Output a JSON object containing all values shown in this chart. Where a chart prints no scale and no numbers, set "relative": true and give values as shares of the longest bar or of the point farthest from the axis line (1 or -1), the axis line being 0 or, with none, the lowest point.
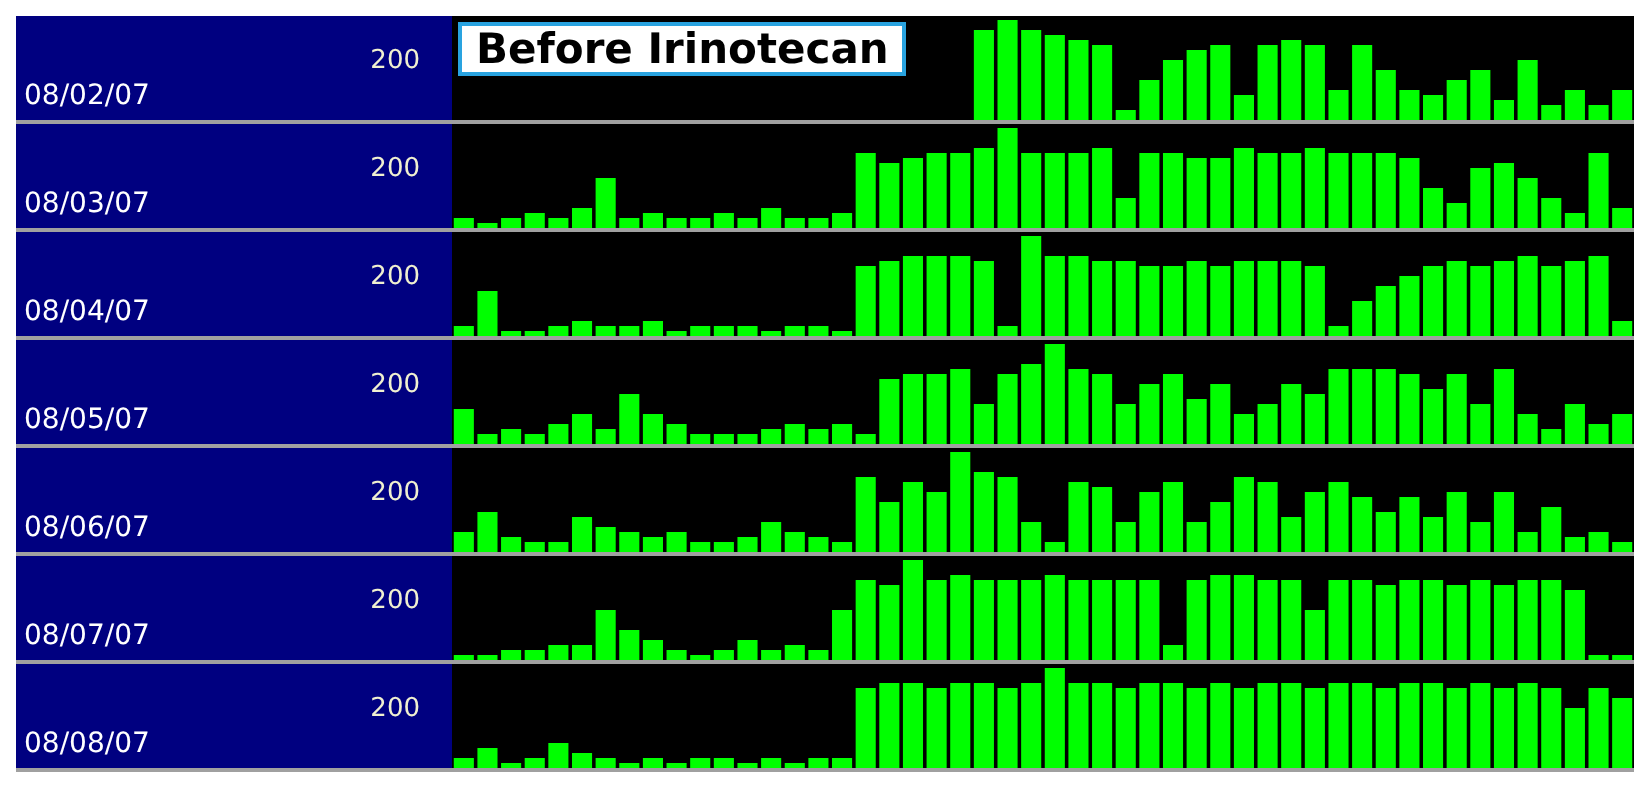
{
  "chart_data": [
    {
      "type": "bar",
      "title": "Before Irinotecan",
      "ylabel": "08/02/07",
      "annotations": [
        "200"
      ],
      "relative": true,
      "color": "#00ff00",
      "categories": [
        null,
        null,
        null,
        null,
        null,
        null,
        null,
        null,
        null,
        null,
        null,
        null,
        null,
        null,
        null,
        null,
        null,
        null,
        null,
        null,
        null,
        null,
        null,
        null,
        null,
        null,
        null,
        null
      ],
      "values": [
        0.9,
        1,
        0.9,
        0.85,
        0.8,
        0.75,
        0.1,
        0.4,
        0.6,
        0.7,
        0.75,
        0.25,
        0.75,
        0.8,
        0.75,
        0.3,
        0.75,
        0.5,
        0.3,
        0.25,
        0.4,
        0.5,
        0.2,
        0.6,
        0.15,
        0.3,
        0.15,
        0.3
      ]
    },
    {
      "type": "bar",
      "ylabel": "08/03/07",
      "annotations": [
        "200"
      ],
      "relative": true,
      "color": "#00ff00",
      "categories": [
        null,
        null,
        null,
        null,
        null,
        null,
        null,
        null,
        null,
        null,
        null,
        null,
        null,
        null,
        null,
        null,
        null,
        null,
        null,
        null,
        null,
        null,
        null,
        null,
        null,
        null,
        null,
        null,
        null,
        null,
        null,
        null,
        null,
        null,
        null,
        null,
        null,
        null,
        null,
        null,
        null,
        null,
        null,
        null,
        null,
        null,
        null,
        null,
        null,
        null
      ],
      "values": [
        0.1,
        0.05,
        0.1,
        0.15,
        0.1,
        0.2,
        0.5,
        0.1,
        0.15,
        0.1,
        0.1,
        0.15,
        0.1,
        0.2,
        0.1,
        0.1,
        0.15,
        0.75,
        0.65,
        0.7,
        0.75,
        0.75,
        0.8,
        1,
        0.75,
        0.75,
        0.75,
        0.8,
        0.3,
        0.75,
        0.75,
        0.7,
        0.7,
        0.8,
        0.75,
        0.75,
        0.8,
        0.75,
        0.75,
        0.75,
        0.7,
        0.4,
        0.25,
        0.6,
        0.65,
        0.5,
        0.3,
        0.15,
        0.75,
        0.2
      ]
    },
    {
      "type": "bar",
      "ylabel": "08/04/07",
      "annotations": [
        "200"
      ],
      "relative": true,
      "color": "#00ff00",
      "categories": [
        null,
        null,
        null,
        null,
        null,
        null,
        null,
        null,
        null,
        null,
        null,
        null,
        null,
        null,
        null,
        null,
        null,
        null,
        null,
        null,
        null,
        null,
        null,
        null,
        null,
        null,
        null,
        null,
        null,
        null,
        null,
        null,
        null,
        null,
        null,
        null,
        null,
        null,
        null,
        null,
        null,
        null,
        null,
        null,
        null,
        null,
        null,
        null,
        null,
        null
      ],
      "values": [
        0.1,
        0.45,
        0.05,
        0.05,
        0.1,
        0.15,
        0.1,
        0.1,
        0.15,
        0.05,
        0.1,
        0.1,
        0.1,
        0.05,
        0.1,
        0.1,
        0.05,
        0.7,
        0.75,
        0.8,
        0.8,
        0.8,
        0.75,
        0.1,
        1,
        0.8,
        0.8,
        0.75,
        0.75,
        0.7,
        0.7,
        0.75,
        0.7,
        0.75,
        0.75,
        0.75,
        0.7,
        0.1,
        0.35,
        0.5,
        0.6,
        0.7,
        0.75,
        0.7,
        0.75,
        0.8,
        0.7,
        0.75,
        0.8,
        0.15
      ]
    },
    {
      "type": "bar",
      "ylabel": "08/05/07",
      "annotations": [
        "200"
      ],
      "relative": true,
      "color": "#00ff00",
      "categories": [
        null,
        null,
        null,
        null,
        null,
        null,
        null,
        null,
        null,
        null,
        null,
        null,
        null,
        null,
        null,
        null,
        null,
        null,
        null,
        null,
        null,
        null,
        null,
        null,
        null,
        null,
        null,
        null,
        null,
        null,
        null,
        null,
        null,
        null,
        null,
        null,
        null,
        null,
        null,
        null,
        null,
        null,
        null,
        null,
        null,
        null,
        null,
        null,
        null,
        null
      ],
      "values": [
        0.35,
        0.1,
        0.15,
        0.1,
        0.2,
        0.3,
        0.15,
        0.5,
        0.3,
        0.2,
        0.1,
        0.1,
        0.1,
        0.15,
        0.2,
        0.15,
        0.2,
        0.1,
        0.65,
        0.7,
        0.7,
        0.75,
        0.4,
        0.7,
        0.8,
        1,
        0.75,
        0.7,
        0.4,
        0.6,
        0.7,
        0.45,
        0.6,
        0.3,
        0.4,
        0.6,
        0.5,
        0.75,
        0.75,
        0.75,
        0.7,
        0.55,
        0.7,
        0.4,
        0.75,
        0.3,
        0.15,
        0.4,
        0.2,
        0.3
      ]
    },
    {
      "type": "bar",
      "ylabel": "08/06/07",
      "annotations": [
        "200"
      ],
      "relative": true,
      "color": "#00ff00",
      "categories": [
        null,
        null,
        null,
        null,
        null,
        null,
        null,
        null,
        null,
        null,
        null,
        null,
        null,
        null,
        null,
        null,
        null,
        null,
        null,
        null,
        null,
        null,
        null,
        null,
        null,
        null,
        null,
        null,
        null,
        null,
        null,
        null,
        null,
        null,
        null,
        null,
        null,
        null,
        null,
        null,
        null,
        null,
        null,
        null,
        null,
        null,
        null,
        null,
        null,
        null
      ],
      "values": [
        0.2,
        0.4,
        0.15,
        0.1,
        0.1,
        0.35,
        0.25,
        0.2,
        0.15,
        0.2,
        0.1,
        0.1,
        0.15,
        0.3,
        0.2,
        0.15,
        0.1,
        0.75,
        0.5,
        0.7,
        0.6,
        1,
        0.8,
        0.75,
        0.3,
        0.1,
        0.7,
        0.65,
        0.3,
        0.6,
        0.7,
        0.3,
        0.5,
        0.75,
        0.7,
        0.35,
        0.6,
        0.7,
        0.55,
        0.4,
        0.55,
        0.35,
        0.6,
        0.3,
        0.6,
        0.2,
        0.45,
        0.15,
        0.2,
        0.1
      ]
    },
    {
      "type": "bar",
      "ylabel": "08/07/07",
      "annotations": [
        "200"
      ],
      "relative": true,
      "color": "#00ff00",
      "categories": [
        null,
        null,
        null,
        null,
        null,
        null,
        null,
        null,
        null,
        null,
        null,
        null,
        null,
        null,
        null,
        null,
        null,
        null,
        null,
        null,
        null,
        null,
        null,
        null,
        null,
        null,
        null,
        null,
        null,
        null,
        null,
        null,
        null,
        null,
        null,
        null,
        null,
        null,
        null,
        null,
        null,
        null,
        null,
        null,
        null,
        null,
        null,
        null,
        null,
        null
      ],
      "values": [
        0.05,
        0.05,
        0.1,
        0.1,
        0.15,
        0.15,
        0.5,
        0.3,
        0.2,
        0.1,
        0.05,
        0.1,
        0.2,
        0.1,
        0.15,
        0.1,
        0.5,
        0.8,
        0.75,
        1,
        0.8,
        0.85,
        0.8,
        0.8,
        0.8,
        0.85,
        0.8,
        0.8,
        0.8,
        0.8,
        0.15,
        0.8,
        0.85,
        0.85,
        0.8,
        0.8,
        0.5,
        0.8,
        0.8,
        0.75,
        0.8,
        0.8,
        0.75,
        0.8,
        0.75,
        0.8,
        0.8,
        0.7,
        0.05,
        0.05
      ]
    },
    {
      "type": "bar",
      "ylabel": "08/08/07",
      "annotations": [
        "200"
      ],
      "relative": true,
      "color": "#00ff00",
      "categories": [
        null,
        null,
        null,
        null,
        null,
        null,
        null,
        null,
        null,
        null,
        null,
        null,
        null,
        null,
        null,
        null,
        null,
        null,
        null,
        null,
        null,
        null,
        null,
        null,
        null,
        null,
        null,
        null,
        null,
        null,
        null,
        null,
        null,
        null,
        null,
        null,
        null,
        null,
        null,
        null,
        null,
        null,
        null,
        null,
        null,
        null,
        null,
        null,
        null,
        null
      ],
      "values": [
        0.1,
        0.2,
        0.05,
        0.1,
        0.25,
        0.15,
        0.1,
        0.05,
        0.1,
        0.05,
        0.1,
        0.1,
        0.05,
        0.1,
        0.05,
        0.1,
        0.1,
        0.8,
        0.85,
        0.85,
        0.8,
        0.85,
        0.85,
        0.8,
        0.85,
        1,
        0.85,
        0.85,
        0.8,
        0.85,
        0.85,
        0.8,
        0.85,
        0.8,
        0.85,
        0.85,
        0.8,
        0.85,
        0.85,
        0.8,
        0.85,
        0.85,
        0.8,
        0.85,
        0.8,
        0.85,
        0.8,
        0.6,
        0.8,
        0.7
      ]
    }
  ]
}
